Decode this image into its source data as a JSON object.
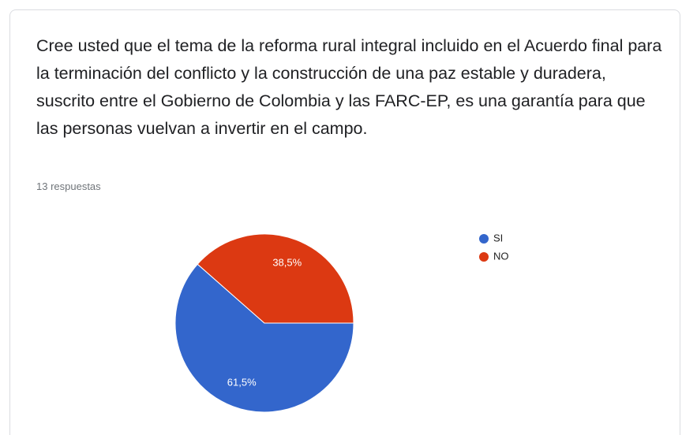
{
  "chart_data": {
    "type": "pie",
    "title": "Cree usted que el tema de la reforma rural integral incluido en el Acuerdo final para la terminación del conflicto y la construcción de una paz estable y duradera, suscrito entre el Gobierno de Colombia y las FARC-EP, es una garantía para que las personas vuelvan a invertir en el campo.",
    "subtitle": "13 respuestas",
    "categories": [
      "SI",
      "NO"
    ],
    "values": [
      61.5,
      38.5
    ],
    "value_labels": [
      "61,5%",
      "38,5%"
    ],
    "colors": [
      "#3366cc",
      "#dc3912"
    ],
    "legend": "right"
  }
}
